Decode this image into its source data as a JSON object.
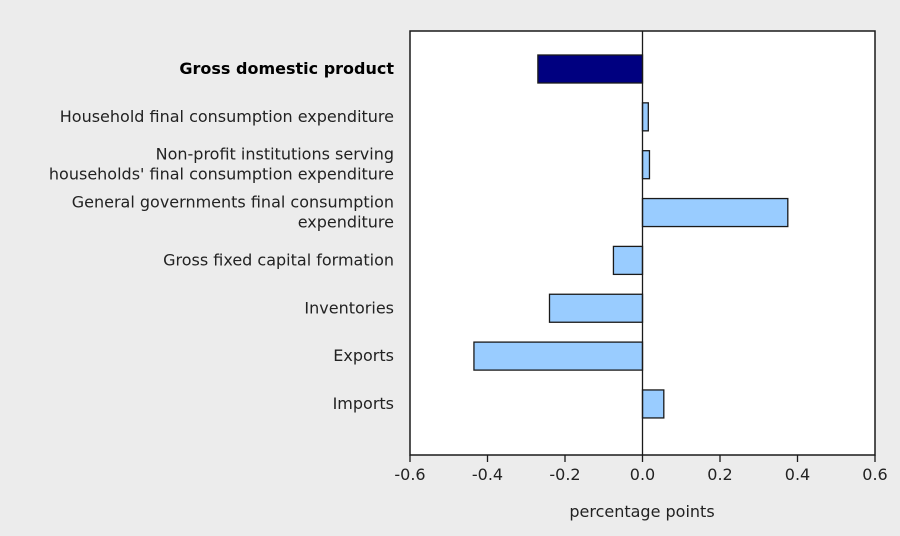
{
  "chart_data": {
    "type": "bar",
    "orientation": "horizontal",
    "xlabel": "percentage points",
    "xlim": [
      -0.6,
      0.6
    ],
    "xticks": [
      "-0.6",
      "-0.4",
      "-0.2",
      "0.0",
      "0.2",
      "0.4",
      "0.6"
    ],
    "grid": false,
    "categories": [
      {
        "label_lines": [
          "Gross domestic product"
        ],
        "value": -0.27,
        "highlight": true
      },
      {
        "label_lines": [
          "Household final consumption expenditure"
        ],
        "value": 0.015,
        "highlight": false
      },
      {
        "label_lines": [
          "Non-profit institutions serving",
          "households' final consumption expenditure"
        ],
        "value": 0.018,
        "highlight": false
      },
      {
        "label_lines": [
          "General governments final consumption",
          "expenditure"
        ],
        "value": 0.375,
        "highlight": false
      },
      {
        "label_lines": [
          "Gross fixed capital formation"
        ],
        "value": -0.075,
        "highlight": false
      },
      {
        "label_lines": [
          "Inventories"
        ],
        "value": -0.24,
        "highlight": false
      },
      {
        "label_lines": [
          "Exports"
        ],
        "value": -0.435,
        "highlight": false
      },
      {
        "label_lines": [
          "Imports"
        ],
        "value": 0.055,
        "highlight": false
      }
    ],
    "colors": {
      "highlight_fill": "#000080",
      "bar_fill": "#99ccff",
      "bar_stroke": "#1a1a1a",
      "plot_background": "#ffffff",
      "page_background": "#ececec"
    }
  }
}
